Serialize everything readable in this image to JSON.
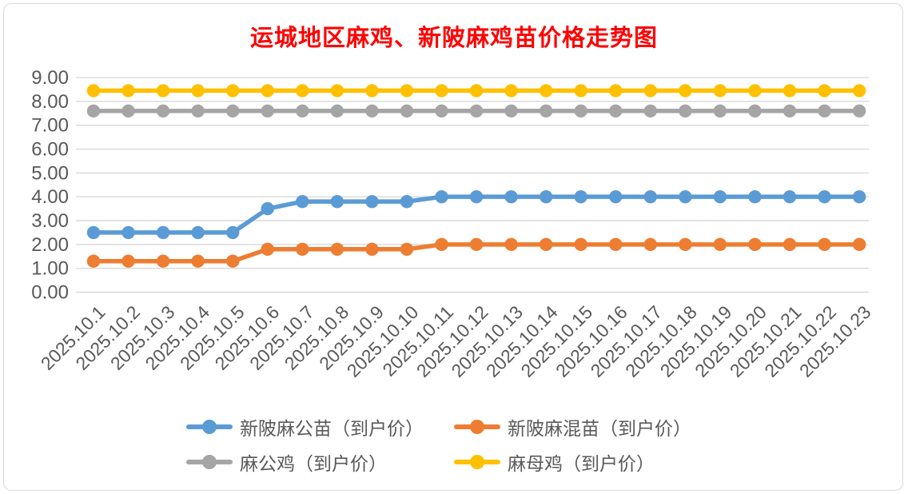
{
  "chart_data": {
    "type": "line",
    "title": "运城地区麻鸡、新陂麻鸡苗价格走势图",
    "title_color": "#FF0000",
    "x": [
      "2025.10.1",
      "2025.10.2",
      "2025.10.3",
      "2025.10.4",
      "2025.10.5",
      "2025.10.6",
      "2025.10.7",
      "2025.10.8",
      "2025.10.9",
      "2025.10.10",
      "2025.10.11",
      "2025.10.12",
      "2025.10.13",
      "2025.10.14",
      "2025.10.15",
      "2025.10.16",
      "2025.10.17",
      "2025.10.18",
      "2025.10.19",
      "2025.10.20",
      "2025.10.21",
      "2025.10.22",
      "2025.10.23"
    ],
    "ylim": [
      0,
      9
    ],
    "ytick_step": 1,
    "ytick_labels": [
      "0.00",
      "1.00",
      "2.00",
      "3.00",
      "4.00",
      "5.00",
      "6.00",
      "7.00",
      "8.00",
      "9.00"
    ],
    "grid": true,
    "gridline_color": "#d9d9d9",
    "axis_label_color": "#595959",
    "legend_position": "bottom",
    "series": [
      {
        "name": "新陂麻公苗（到户价）",
        "color": "#5B9BD5",
        "values": [
          2.5,
          2.5,
          2.5,
          2.5,
          2.5,
          3.5,
          3.8,
          3.8,
          3.8,
          3.8,
          4.0,
          4.0,
          4.0,
          4.0,
          4.0,
          4.0,
          4.0,
          4.0,
          4.0,
          4.0,
          4.0,
          4.0,
          4.0
        ]
      },
      {
        "name": "新陂麻混苗（到户价）",
        "color": "#ED7D31",
        "values": [
          1.3,
          1.3,
          1.3,
          1.3,
          1.3,
          1.8,
          1.8,
          1.8,
          1.8,
          1.8,
          2.0,
          2.0,
          2.0,
          2.0,
          2.0,
          2.0,
          2.0,
          2.0,
          2.0,
          2.0,
          2.0,
          2.0,
          2.0
        ]
      },
      {
        "name": "麻公鸡（到户价）",
        "color": "#A5A5A5",
        "values": [
          7.6,
          7.6,
          7.6,
          7.6,
          7.6,
          7.6,
          7.6,
          7.6,
          7.6,
          7.6,
          7.6,
          7.6,
          7.6,
          7.6,
          7.6,
          7.6,
          7.6,
          7.6,
          7.6,
          7.6,
          7.6,
          7.6,
          7.6
        ]
      },
      {
        "name": "麻母鸡（到户价）",
        "color": "#FFC000",
        "values": [
          8.45,
          8.45,
          8.45,
          8.45,
          8.45,
          8.45,
          8.45,
          8.45,
          8.45,
          8.45,
          8.45,
          8.45,
          8.45,
          8.45,
          8.45,
          8.45,
          8.45,
          8.45,
          8.45,
          8.45,
          8.45,
          8.45,
          8.45
        ]
      }
    ]
  }
}
